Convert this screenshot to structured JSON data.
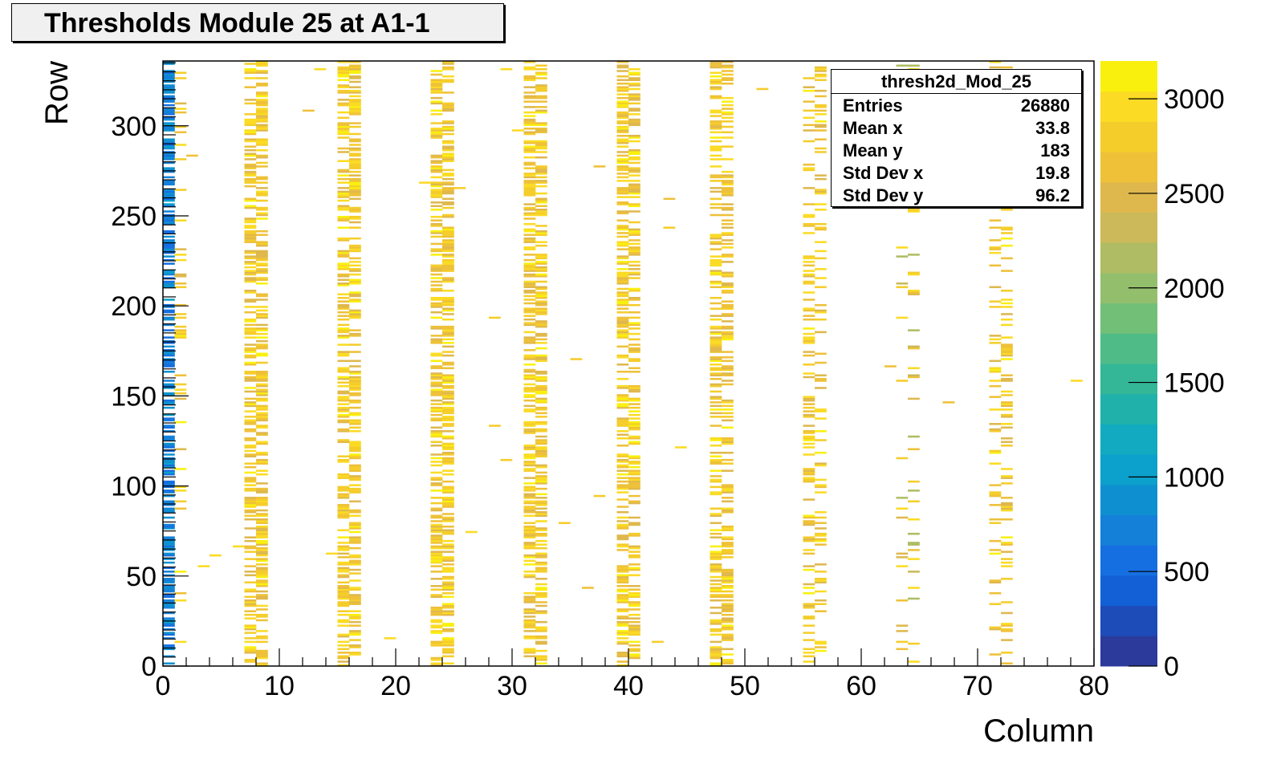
{
  "title": "Thresholds Module 25 at A1-1",
  "chart_data": {
    "type": "heatmap",
    "title": "Thresholds Module 25 at A1-1",
    "histogram_name": "thresh2d_Mod_25",
    "xlabel": "Column",
    "ylabel": "Row",
    "xlim": [
      0,
      80
    ],
    "ylim": [
      0,
      336
    ],
    "x_ticks": [
      "0",
      "10",
      "20",
      "30",
      "40",
      "50",
      "60",
      "70",
      "80"
    ],
    "y_ticks": [
      "0",
      "50",
      "100",
      "150",
      "200",
      "250",
      "300"
    ],
    "colorbar": {
      "zlim": [
        0,
        3200
      ],
      "ticks": [
        "0",
        "500",
        "1000",
        "1500",
        "2000",
        "2500",
        "3000"
      ],
      "palette": [
        "#2c3a9b",
        "#1d4bb8",
        "#1360d6",
        "#166fe0",
        "#1480d8",
        "#0e90d0",
        "#0ca0cc",
        "#12aac0",
        "#20b2aa",
        "#34b797",
        "#4fbc87",
        "#72bf78",
        "#93bf6d",
        "#b0bc63",
        "#cbb95a",
        "#dfb84d",
        "#eec139",
        "#f5cd2b",
        "#fbdb24",
        "#f9f00e"
      ]
    },
    "stats": [
      {
        "label": "Entries",
        "value": "26880"
      },
      {
        "label": "Mean x",
        "value": "33.8"
      },
      {
        "label": "Mean y",
        "value": "183"
      },
      {
        "label": "Std Dev x",
        "value": "19.8"
      },
      {
        "label": "Std Dev y",
        "value": "96.2"
      }
    ],
    "columns": [
      {
        "x": 0,
        "density": 0.62,
        "zmin": 500,
        "zmax": 1000
      },
      {
        "x": 1,
        "density": 0.12,
        "zmin": 2500,
        "zmax": 3100
      },
      {
        "x": 7,
        "density": 0.5,
        "zmin": 2400,
        "zmax": 3100
      },
      {
        "x": 8,
        "density": 0.55,
        "zmin": 2400,
        "zmax": 3100
      },
      {
        "x": 15,
        "density": 0.5,
        "zmin": 2400,
        "zmax": 3100
      },
      {
        "x": 16,
        "density": 0.55,
        "zmin": 2400,
        "zmax": 3100
      },
      {
        "x": 23,
        "density": 0.5,
        "zmin": 2400,
        "zmax": 3100
      },
      {
        "x": 24,
        "density": 0.55,
        "zmin": 2400,
        "zmax": 3100
      },
      {
        "x": 31,
        "density": 0.5,
        "zmin": 2400,
        "zmax": 3100
      },
      {
        "x": 32,
        "density": 0.55,
        "zmin": 2400,
        "zmax": 3100
      },
      {
        "x": 39,
        "density": 0.5,
        "zmin": 2400,
        "zmax": 3100
      },
      {
        "x": 40,
        "density": 0.48,
        "zmin": 2400,
        "zmax": 3100
      },
      {
        "x": 47,
        "density": 0.42,
        "zmin": 2400,
        "zmax": 3100
      },
      {
        "x": 48,
        "density": 0.4,
        "zmin": 2400,
        "zmax": 3100
      },
      {
        "x": 55,
        "density": 0.3,
        "zmin": 2400,
        "zmax": 3100
      },
      {
        "x": 56,
        "density": 0.26,
        "zmin": 2400,
        "zmax": 3100
      },
      {
        "x": 63,
        "density": 0.07,
        "zmin": 2100,
        "zmax": 3000
      },
      {
        "x": 64,
        "density": 0.09,
        "zmin": 2100,
        "zmax": 3000
      },
      {
        "x": 71,
        "density": 0.18,
        "zmin": 2400,
        "zmax": 3100
      },
      {
        "x": 72,
        "density": 0.25,
        "zmin": 2400,
        "zmax": 3100
      }
    ],
    "isolated_cells": [
      [
        2,
        283,
        2700
      ],
      [
        4,
        61,
        3000
      ],
      [
        3,
        55,
        3000
      ],
      [
        6,
        66,
        3000
      ],
      [
        12,
        308,
        2700
      ],
      [
        13,
        331,
        3000
      ],
      [
        14,
        62,
        2900
      ],
      [
        19,
        15,
        3000
      ],
      [
        22,
        268,
        3000
      ],
      [
        25,
        265,
        2800
      ],
      [
        26,
        74,
        3000
      ],
      [
        28,
        133,
        2800
      ],
      [
        29,
        114,
        2800
      ],
      [
        28,
        193,
        2800
      ],
      [
        29,
        331,
        3000
      ],
      [
        30,
        297,
        2900
      ],
      [
        34,
        79,
        2800
      ],
      [
        35,
        170,
        2800
      ],
      [
        36,
        43,
        2700
      ],
      [
        37,
        94,
        2800
      ],
      [
        37,
        277,
        2700
      ],
      [
        42,
        13,
        2800
      ],
      [
        43,
        259,
        2700
      ],
      [
        43,
        243,
        2800
      ],
      [
        44,
        121,
        3000
      ],
      [
        51,
        320,
        2800
      ],
      [
        62,
        166,
        2600
      ],
      [
        67,
        146,
        2700
      ],
      [
        78,
        158,
        3000
      ]
    ]
  }
}
